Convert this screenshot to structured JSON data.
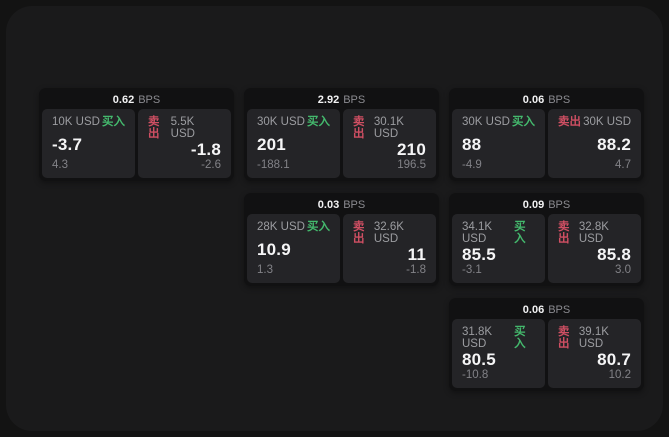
{
  "theme": {
    "outer_bg": "#131313",
    "panel_bg": "#1a1a1b",
    "card_bg": "#111112",
    "tile_bg": "#242427",
    "text_primary": "#f5f5f6",
    "text_secondary": "#9c9da1",
    "text_dim": "#828287",
    "buy_color": "#44b96d",
    "sell_color": "#cf4f63"
  },
  "labels": {
    "bps_unit": "BPS",
    "buy": "买入",
    "sell": "卖出"
  },
  "cards": [
    {
      "bps": "0.62",
      "buy": {
        "size": "10K USD",
        "price": "-3.7",
        "delta": "4.3"
      },
      "sell": {
        "size": "5.5K USD",
        "price": "-1.8",
        "delta": "-2.6"
      }
    },
    {
      "bps": "2.92",
      "buy": {
        "size": "30K USD",
        "price": "201",
        "delta": "-188.1"
      },
      "sell": {
        "size": "30.1K USD",
        "price": "210",
        "delta": "196.5"
      }
    },
    {
      "bps": "0.06",
      "buy": {
        "size": "30K USD",
        "price": "88",
        "delta": "-4.9"
      },
      "sell": {
        "size": "30K USD",
        "price": "88.2",
        "delta": "4.7"
      }
    },
    {
      "bps": "0.03",
      "buy": {
        "size": "28K USD",
        "price": "10.9",
        "delta": "1.3"
      },
      "sell": {
        "size": "32.6K USD",
        "price": "11",
        "delta": "-1.8"
      }
    },
    {
      "bps": "0.09",
      "buy": {
        "size": "34.1K USD",
        "price": "85.5",
        "delta": "-3.1"
      },
      "sell": {
        "size": "32.8K USD",
        "price": "85.8",
        "delta": "3.0"
      }
    },
    {
      "bps": "0.06",
      "buy": {
        "size": "31.8K USD",
        "price": "80.5",
        "delta": "-10.8"
      },
      "sell": {
        "size": "39.1K USD",
        "price": "80.7",
        "delta": "10.2"
      }
    }
  ]
}
